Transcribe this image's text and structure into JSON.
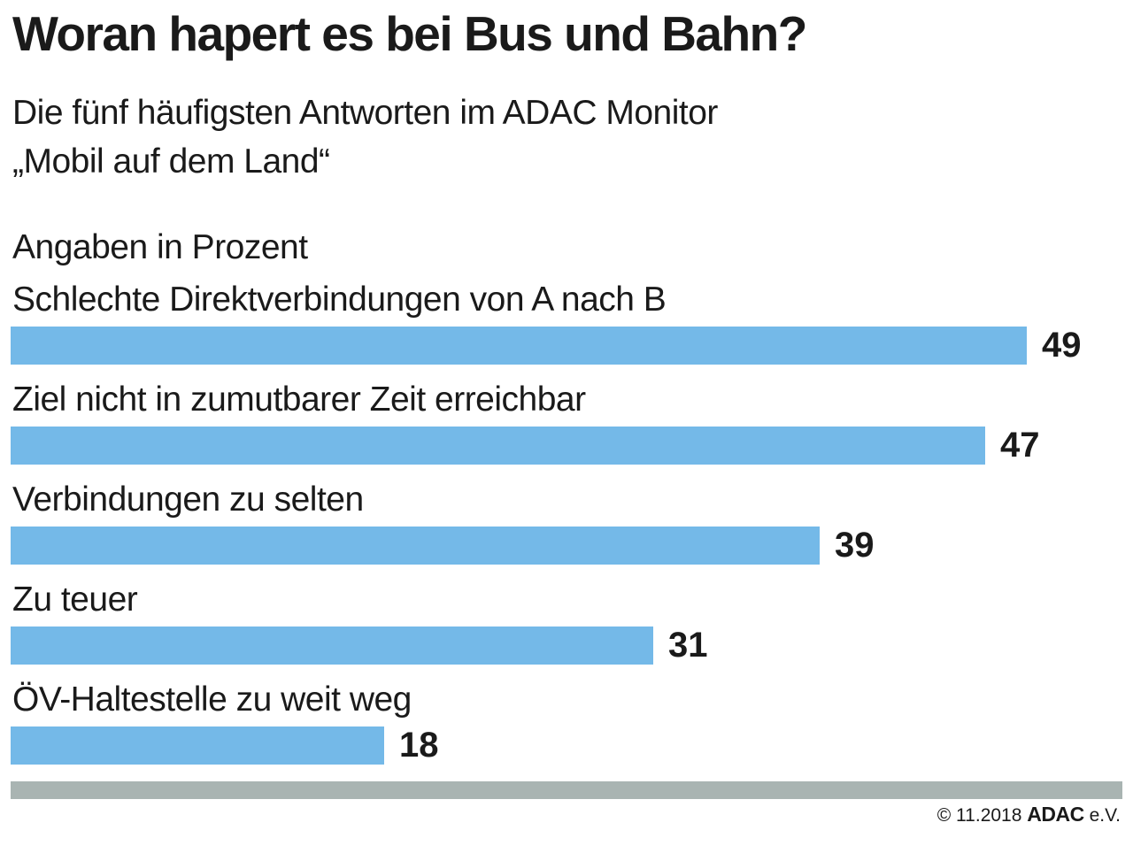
{
  "header": {
    "title": "Woran hapert es bei Bus und Bahn?",
    "subtitle_line1": "Die fünf häufigsten Antworten im ADAC Monitor",
    "subtitle_line2": "„Mobil auf dem Land“",
    "units_note": "Angaben in Prozent"
  },
  "footer": {
    "copyright": "© 11.2018",
    "brand": "ADAC",
    "suffix": "e.V."
  },
  "colors": {
    "bar": "#74b9e8",
    "divider": "#a9b4b2",
    "text": "#1a1a1a"
  },
  "chart_data": {
    "type": "bar",
    "orientation": "horizontal",
    "title": "Woran hapert es bei Bus und Bahn?",
    "subtitle": "Die fünf häufigsten Antworten im ADAC Monitor „Mobil auf dem Land“",
    "units": "Angaben in Prozent",
    "categories": [
      "Schlechte Direktverbindungen von A nach B",
      "Ziel nicht in zumutbarer Zeit erreichbar",
      "Verbindungen zu selten",
      "Zu teuer",
      "ÖV-Haltestelle zu weit weg"
    ],
    "values": [
      49,
      47,
      39,
      31,
      18
    ],
    "data_labels": true,
    "xlim": [
      0,
      53
    ],
    "grid": false,
    "legend": false,
    "source": "© 11.2018 ADAC e.V."
  }
}
